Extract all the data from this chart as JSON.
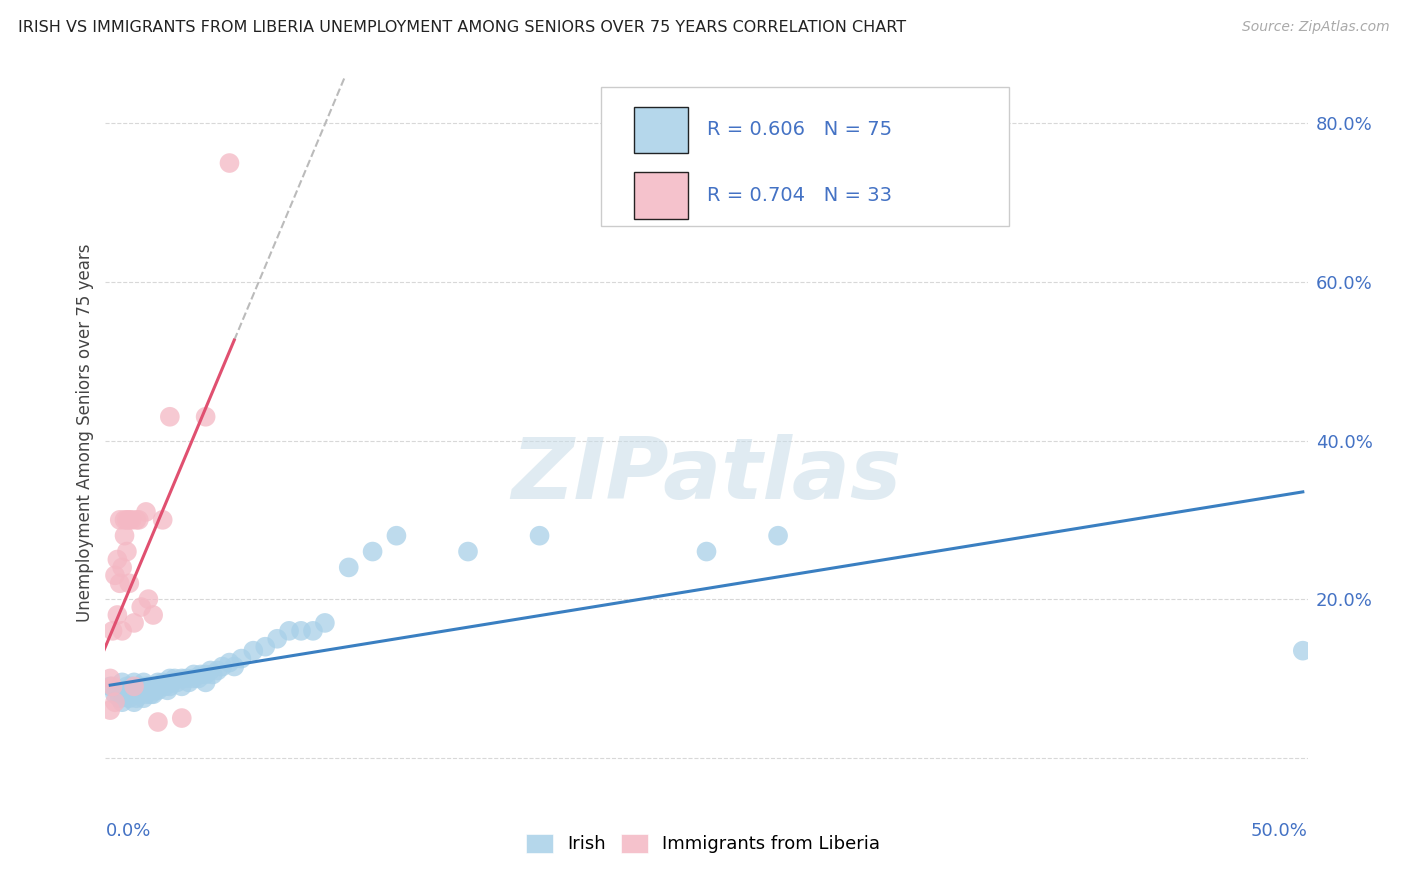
{
  "title": "IRISH VS IMMIGRANTS FROM LIBERIA UNEMPLOYMENT AMONG SENIORS OVER 75 YEARS CORRELATION CHART",
  "source": "Source: ZipAtlas.com",
  "ylabel": "Unemployment Among Seniors over 75 years",
  "yaxis_ticks": [
    0.0,
    0.2,
    0.4,
    0.6,
    0.8
  ],
  "yaxis_labels": [
    "",
    "20.0%",
    "40.0%",
    "60.0%",
    "80.0%"
  ],
  "xaxis_left_label": "0.0%",
  "xaxis_right_label": "50.0%",
  "xlim": [
    -0.002,
    0.502
  ],
  "ylim": [
    -0.04,
    0.86
  ],
  "legend_irish_R": "0.606",
  "legend_irish_N": "75",
  "legend_liberia_R": "0.704",
  "legend_liberia_N": "33",
  "irish_color": "#a8d0e8",
  "liberia_color": "#f4b8c4",
  "irish_line_color": "#3a7fc1",
  "liberia_line_color": "#e05070",
  "irish_scatter_x": [
    0.0,
    0.002,
    0.003,
    0.004,
    0.005,
    0.005,
    0.006,
    0.007,
    0.007,
    0.008,
    0.008,
    0.009,
    0.01,
    0.01,
    0.01,
    0.011,
    0.011,
    0.012,
    0.012,
    0.013,
    0.013,
    0.014,
    0.014,
    0.015,
    0.015,
    0.016,
    0.016,
    0.017,
    0.017,
    0.018,
    0.018,
    0.019,
    0.02,
    0.02,
    0.021,
    0.022,
    0.023,
    0.024,
    0.025,
    0.025,
    0.026,
    0.027,
    0.028,
    0.03,
    0.03,
    0.032,
    0.033,
    0.035,
    0.035,
    0.037,
    0.038,
    0.04,
    0.04,
    0.042,
    0.043,
    0.045,
    0.047,
    0.05,
    0.052,
    0.055,
    0.06,
    0.065,
    0.07,
    0.075,
    0.08,
    0.085,
    0.09,
    0.1,
    0.11,
    0.12,
    0.15,
    0.18,
    0.25,
    0.28,
    0.5
  ],
  "irish_scatter_y": [
    0.09,
    0.08,
    0.085,
    0.075,
    0.095,
    0.07,
    0.085,
    0.09,
    0.08,
    0.085,
    0.075,
    0.09,
    0.095,
    0.08,
    0.07,
    0.085,
    0.075,
    0.09,
    0.08,
    0.085,
    0.09,
    0.075,
    0.095,
    0.09,
    0.08,
    0.085,
    0.09,
    0.08,
    0.085,
    0.09,
    0.08,
    0.085,
    0.095,
    0.085,
    0.09,
    0.095,
    0.09,
    0.085,
    0.1,
    0.09,
    0.095,
    0.1,
    0.095,
    0.1,
    0.09,
    0.1,
    0.095,
    0.1,
    0.105,
    0.1,
    0.105,
    0.105,
    0.095,
    0.11,
    0.105,
    0.11,
    0.115,
    0.12,
    0.115,
    0.125,
    0.135,
    0.14,
    0.15,
    0.16,
    0.16,
    0.16,
    0.17,
    0.24,
    0.26,
    0.28,
    0.26,
    0.28,
    0.26,
    0.28,
    0.135
  ],
  "liberia_scatter_x": [
    0.0,
    0.0,
    0.001,
    0.001,
    0.002,
    0.002,
    0.003,
    0.003,
    0.004,
    0.004,
    0.005,
    0.005,
    0.006,
    0.006,
    0.007,
    0.007,
    0.008,
    0.008,
    0.009,
    0.01,
    0.01,
    0.011,
    0.012,
    0.013,
    0.015,
    0.016,
    0.018,
    0.02,
    0.022,
    0.025,
    0.03,
    0.04,
    0.05
  ],
  "liberia_scatter_y": [
    0.06,
    0.1,
    0.09,
    0.16,
    0.07,
    0.23,
    0.18,
    0.25,
    0.22,
    0.3,
    0.16,
    0.24,
    0.3,
    0.28,
    0.26,
    0.3,
    0.22,
    0.3,
    0.3,
    0.09,
    0.17,
    0.3,
    0.3,
    0.19,
    0.31,
    0.2,
    0.18,
    0.045,
    0.3,
    0.43,
    0.05,
    0.43,
    0.75
  ],
  "watermark": "ZIPatlas",
  "watermark_color": "#c8dce8"
}
